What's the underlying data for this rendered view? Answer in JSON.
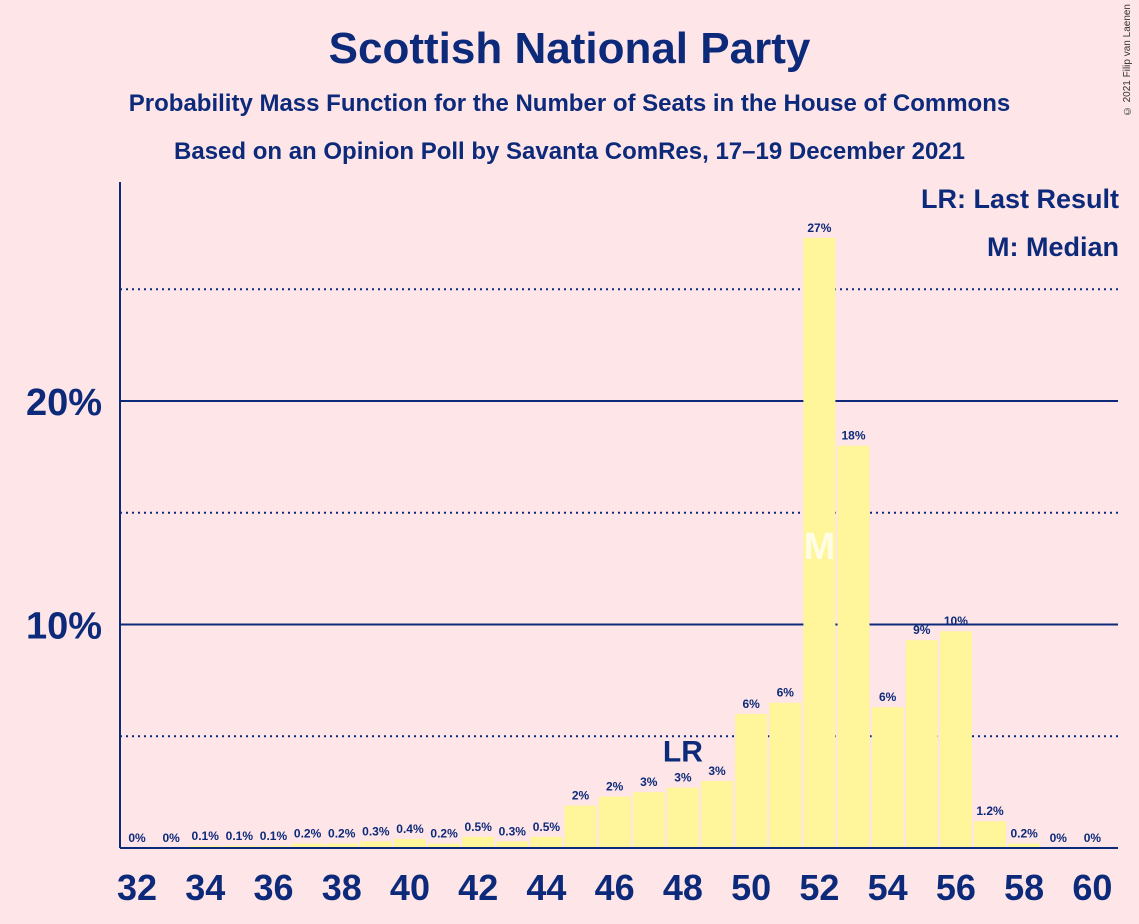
{
  "title": "Scottish National Party",
  "subtitle": "Probability Mass Function for the Number of Seats in the House of Commons",
  "subtitle2": "Based on an Opinion Poll by Savanta ComRes, 17–19 December 2021",
  "copyright": "© 2021 Filip van Laenen",
  "legend": {
    "lr": "LR: Last Result",
    "m": "M: Median"
  },
  "colors": {
    "background": "#fde5e8",
    "bar": "#fff59a",
    "text": "#0d2a7a"
  },
  "chart_data": {
    "type": "bar",
    "x": [
      32,
      33,
      34,
      35,
      36,
      37,
      38,
      39,
      40,
      41,
      42,
      43,
      44,
      45,
      46,
      47,
      48,
      49,
      50,
      51,
      52,
      53,
      54,
      55,
      56,
      57,
      58,
      59,
      60
    ],
    "values": [
      0,
      0,
      0.1,
      0.1,
      0.1,
      0.2,
      0.2,
      0.3,
      0.4,
      0.2,
      0.5,
      0.3,
      0.5,
      1.9,
      2.3,
      2.5,
      2.7,
      3.0,
      6.0,
      6.5,
      27.3,
      18.0,
      6.3,
      9.3,
      9.7,
      1.2,
      0.2,
      0,
      0
    ],
    "labels": [
      "0%",
      "0%",
      "0.1%",
      "0.1%",
      "0.1%",
      "0.2%",
      "0.2%",
      "0.3%",
      "0.4%",
      "0.2%",
      "0.5%",
      "0.3%",
      "0.5%",
      "2%",
      "2%",
      "3%",
      "3%",
      "3%",
      "6%",
      "6%",
      "27%",
      "18%",
      "6%",
      "9%",
      "10%",
      "1.2%",
      "0.2%",
      "0%",
      "0%"
    ],
    "x_ticks": [
      "32",
      "34",
      "36",
      "38",
      "40",
      "42",
      "44",
      "46",
      "48",
      "50",
      "52",
      "54",
      "56",
      "58",
      "60"
    ],
    "y_ticks": [
      "10%",
      "20%"
    ],
    "ylim": [
      0,
      29
    ],
    "solid_gridlines": [
      10,
      20
    ],
    "dotted_gridlines": [
      5,
      15,
      25
    ],
    "last_result": {
      "seat": 48,
      "label": "LR"
    },
    "median": {
      "seat": 52,
      "label": "M"
    }
  }
}
